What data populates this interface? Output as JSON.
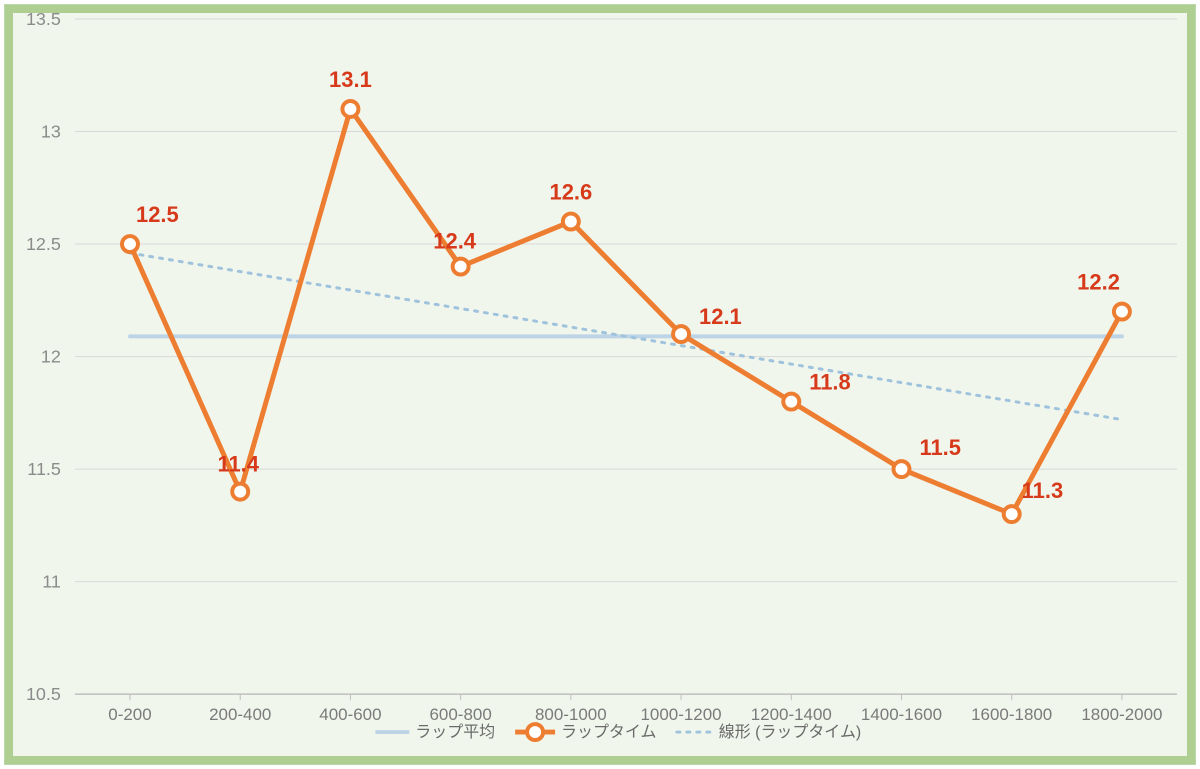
{
  "chart": {
    "type": "line",
    "categories": [
      "0-200",
      "200-400",
      "400-600",
      "600-800",
      "800-1000",
      "1000-1200",
      "1200-1400",
      "1400-1600",
      "1600-1800",
      "1800-2000"
    ],
    "lap_values": [
      12.5,
      11.4,
      13.1,
      12.4,
      12.6,
      12.1,
      11.8,
      11.5,
      11.3,
      12.2
    ],
    "lap_labels": [
      "12.5",
      "11.4",
      "13.1",
      "12.4",
      "12.6",
      "12.1",
      "11.8",
      "11.5",
      "11.3",
      "12.2"
    ],
    "average_value": 12.09,
    "trend_start": 12.46,
    "trend_end": 11.72,
    "ylim_min": 10.5,
    "ylim_max": 13.5,
    "ytick_step": 0.5,
    "yticks": [
      "10.5",
      "11",
      "11.5",
      "12",
      "12.5",
      "13",
      "13.5"
    ],
    "colors": {
      "outer_border": "#bdd7a8",
      "frame_bg": "#aecf91",
      "plot_bg": "#f1f6ec",
      "grid": "#d8d8d8",
      "baseline": "#bfbfbf",
      "ytick_text": "#8b8b8b",
      "xtick_text": "#7a7a7a",
      "avg_line": "#bcd4e6",
      "trend_line": "#9fc3dd",
      "series_line": "#ed7d31",
      "series_marker_fill": "#ffffff",
      "series_marker_stroke": "#ed7d31",
      "data_label": "#d63a1a",
      "legend_text": "#6a6a6a"
    },
    "line_width_series": 5,
    "line_width_avg": 4,
    "line_width_trend": 3,
    "marker_radius": 8,
    "marker_stroke_width": 4,
    "trend_dash": "3 7",
    "label_fontsize": 22,
    "tick_fontsize_y": 18,
    "tick_fontsize_x": 17,
    "legend_fontsize": 16,
    "legend": {
      "avg": "ラップ平均",
      "series": "ラップタイム",
      "trend": "線形 (ラップタイム)"
    }
  }
}
